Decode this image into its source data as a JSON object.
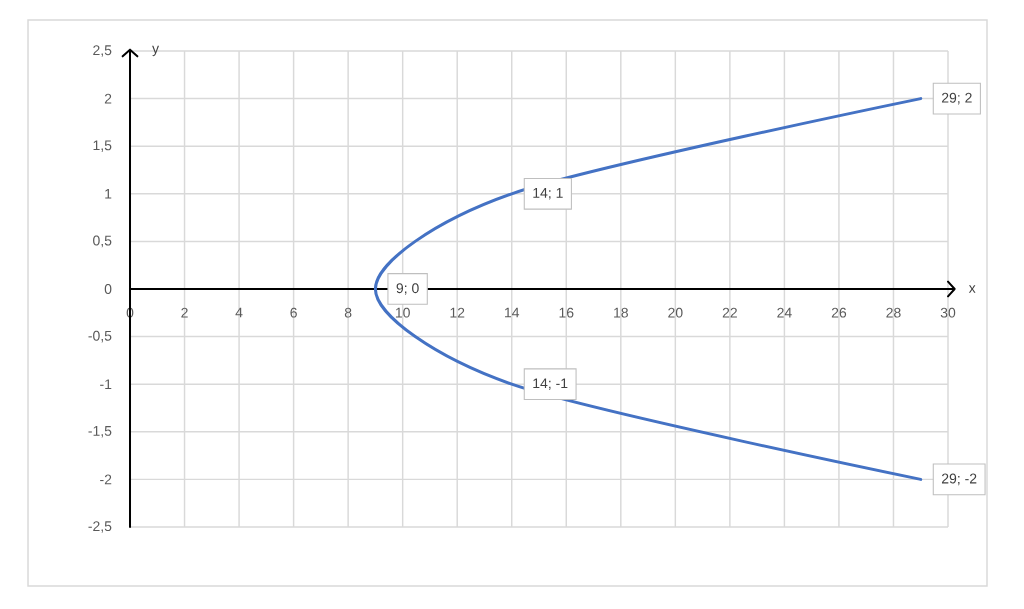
{
  "chart_data": {
    "type": "line",
    "xlabel": "x",
    "ylabel": "y",
    "x": [
      29,
      14,
      9,
      14,
      29
    ],
    "series": [
      {
        "color": "#4472c4",
        "values": [
          2,
          1,
          0,
          -1,
          -2
        ],
        "value_labels": [
          "29; 2",
          "14; 1",
          "9; 0",
          "14; -1",
          "29; -2"
        ]
      }
    ],
    "xlim": [
      0,
      30
    ],
    "ylim": [
      -2.5,
      2.5
    ],
    "xticks": [
      0,
      2,
      4,
      6,
      8,
      10,
      12,
      14,
      16,
      18,
      20,
      22,
      24,
      26,
      28,
      30
    ],
    "yticks": [
      {
        "value": -2.5,
        "label": "-2,5"
      },
      {
        "value": -2,
        "label": "-2"
      },
      {
        "value": -1.5,
        "label": "-1,5"
      },
      {
        "value": -1,
        "label": "-1"
      },
      {
        "value": -0.5,
        "label": "-0,5"
      },
      {
        "value": 0,
        "label": "0"
      },
      {
        "value": 0.5,
        "label": "0,5"
      },
      {
        "value": 1,
        "label": "1"
      },
      {
        "value": 1.5,
        "label": "1,5"
      },
      {
        "value": 2,
        "label": "2"
      },
      {
        "value": 2.5,
        "label": "2,5"
      }
    ],
    "grid": true,
    "marker": "none",
    "line_style": "solid"
  }
}
